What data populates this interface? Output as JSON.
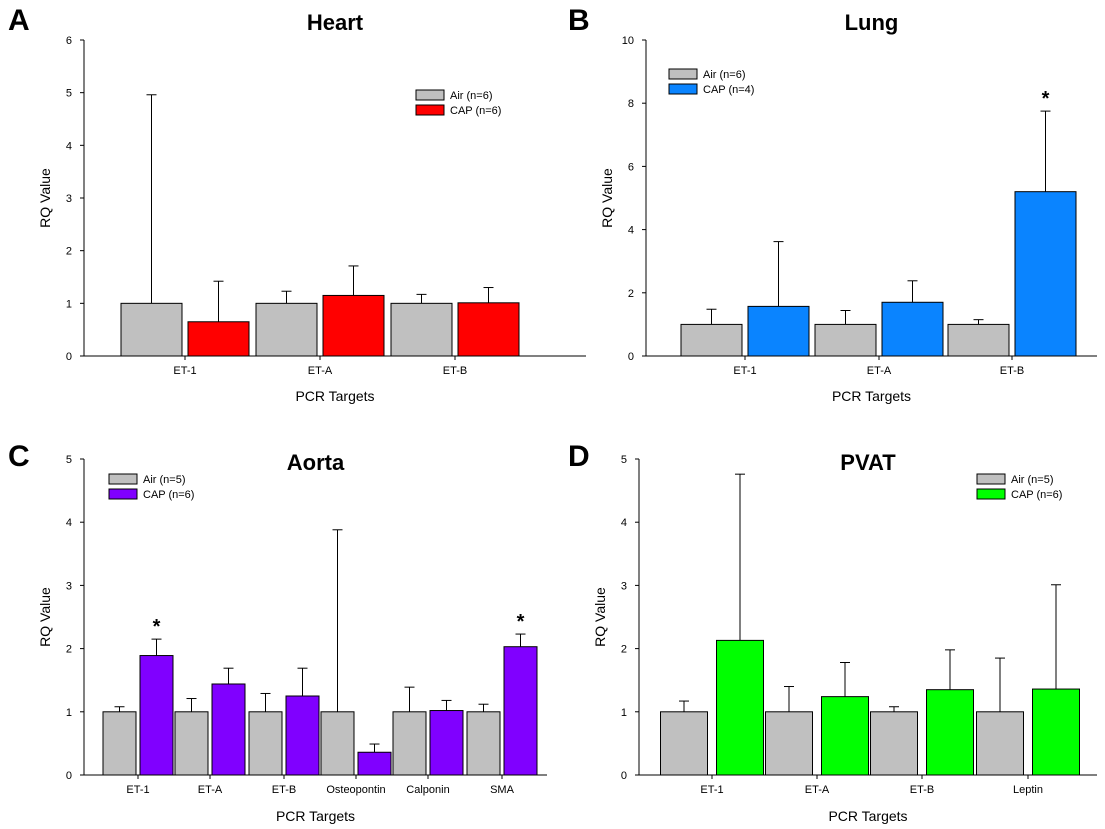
{
  "chart_data": [
    {
      "panel": "A",
      "type": "bar",
      "title": "Heart",
      "xlabel": "PCR Targets",
      "ylabel": "RQ Value",
      "ylim": [
        0,
        6
      ],
      "yticks": [
        0,
        1,
        2,
        3,
        4,
        5,
        6
      ],
      "categories": [
        "ET-1",
        "ET-A",
        "ET-B"
      ],
      "legend_position": "top-right",
      "series": [
        {
          "name": "Air (n=6)",
          "color": "#c0c0c0",
          "values": [
            1.0,
            1.0,
            1.0
          ],
          "errors": [
            3.96,
            0.23,
            0.17
          ]
        },
        {
          "name": "CAP (n=6)",
          "color": "#ff0000",
          "values": [
            0.65,
            1.15,
            1.01
          ],
          "errors": [
            0.77,
            0.56,
            0.29
          ]
        }
      ],
      "significance": []
    },
    {
      "panel": "B",
      "type": "bar",
      "title": "Lung",
      "xlabel": "PCR Targets",
      "ylabel": "RQ Value",
      "ylim": [
        0,
        10
      ],
      "yticks": [
        0,
        2,
        4,
        6,
        8,
        10
      ],
      "categories": [
        "ET-1",
        "ET-A",
        "ET-B"
      ],
      "legend_position": "top-left",
      "series": [
        {
          "name": "Air (n=6)",
          "color": "#c0c0c0",
          "values": [
            1.0,
            1.0,
            1.0
          ],
          "errors": [
            0.48,
            0.44,
            0.15
          ]
        },
        {
          "name": "CAP (n=4)",
          "color": "#0a84ff",
          "values": [
            1.57,
            1.7,
            5.2
          ],
          "errors": [
            2.05,
            0.68,
            2.55
          ]
        }
      ],
      "significance": [
        {
          "category": "ET-B",
          "series": 1,
          "mark": "*"
        }
      ]
    },
    {
      "panel": "C",
      "type": "bar",
      "title": "Aorta",
      "xlabel": "PCR Targets",
      "ylabel": "RQ Value",
      "ylim": [
        0,
        5
      ],
      "yticks": [
        0,
        1,
        2,
        3,
        4,
        5
      ],
      "categories": [
        "ET-1",
        "ET-A",
        "ET-B",
        "Osteopontin",
        "Calponin",
        "SMA"
      ],
      "legend_position": "top-left",
      "series": [
        {
          "name": "Air (n=5)",
          "color": "#c0c0c0",
          "values": [
            1.0,
            1.0,
            1.0,
            1.0,
            1.0,
            1.0
          ],
          "errors": [
            0.08,
            0.21,
            0.29,
            2.88,
            0.39,
            0.12
          ]
        },
        {
          "name": "CAP (n=6)",
          "color": "#8000ff",
          "values": [
            1.89,
            1.44,
            1.25,
            0.36,
            1.02,
            2.03
          ],
          "errors": [
            0.26,
            0.25,
            0.44,
            0.13,
            0.16,
            0.2
          ]
        }
      ],
      "significance": [
        {
          "category": "ET-1",
          "series": 1,
          "mark": "*"
        },
        {
          "category": "SMA",
          "series": 1,
          "mark": "*"
        }
      ]
    },
    {
      "panel": "D",
      "type": "bar",
      "title": "PVAT",
      "xlabel": "PCR Targets",
      "ylabel": "RQ Value",
      "ylim": [
        0,
        5
      ],
      "yticks": [
        0,
        1,
        2,
        3,
        4,
        5
      ],
      "categories": [
        "ET-1",
        "ET-A",
        "ET-B",
        "Leptin"
      ],
      "legend_position": "top-right",
      "series": [
        {
          "name": "Air (n=5)",
          "color": "#c0c0c0",
          "values": [
            1.0,
            1.0,
            1.0,
            1.0
          ],
          "errors": [
            0.17,
            0.4,
            0.08,
            0.85
          ]
        },
        {
          "name": "CAP (n=6)",
          "color": "#00ff00",
          "values": [
            2.13,
            1.24,
            1.35,
            1.36
          ],
          "errors": [
            2.63,
            0.54,
            0.63,
            1.65
          ]
        }
      ],
      "significance": []
    }
  ]
}
